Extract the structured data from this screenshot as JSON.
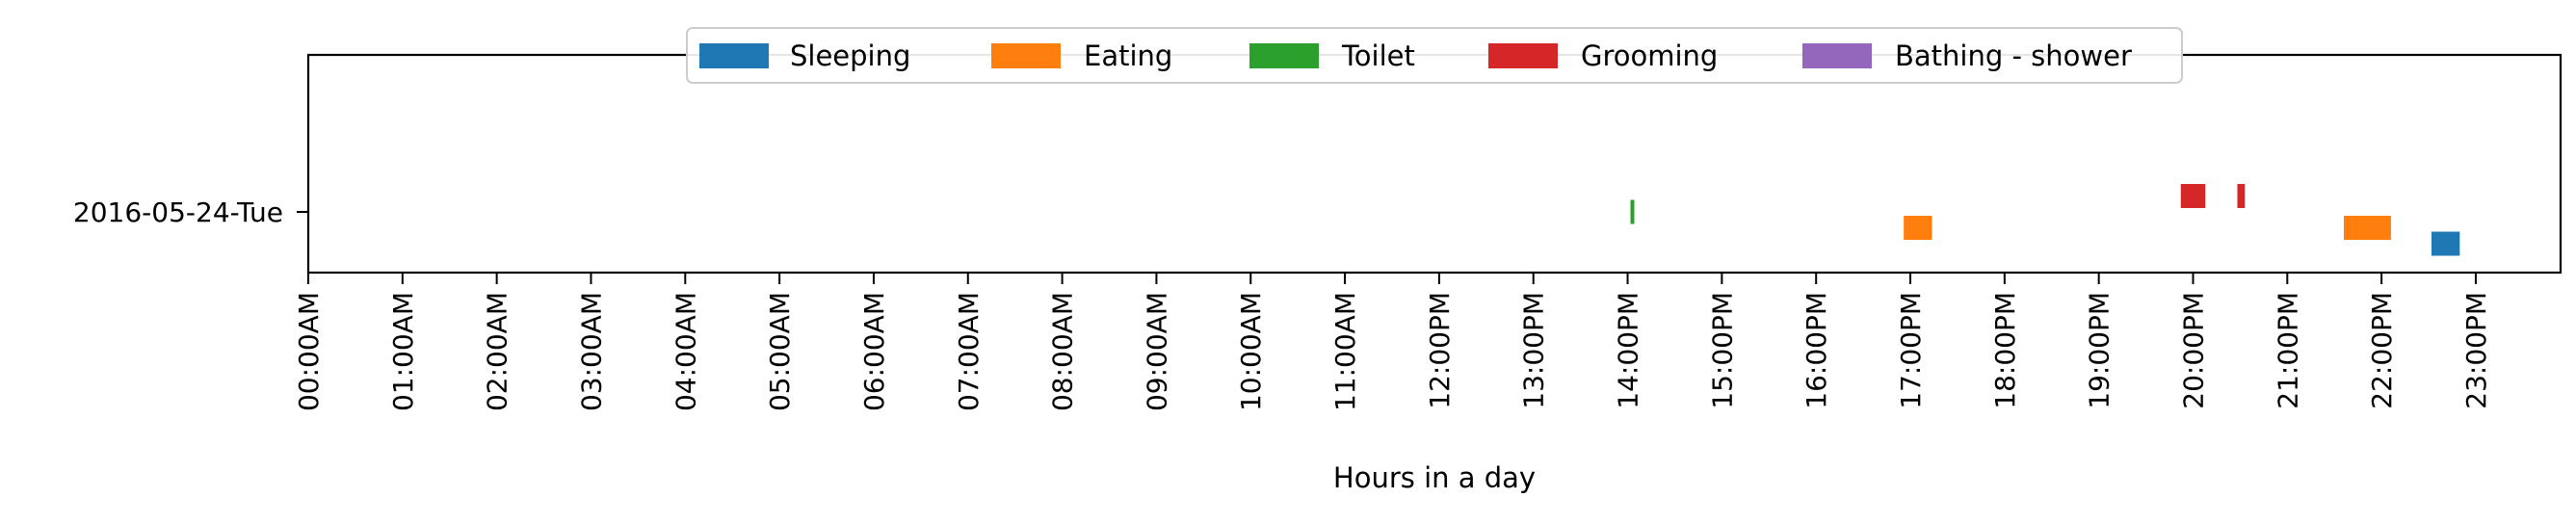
{
  "chart_data": {
    "type": "timeline",
    "xlabel": "Hours in a day",
    "ylabel": "",
    "title": "",
    "xlim": [
      0,
      23.9
    ],
    "row_label": "2016-05-24-Tue",
    "x_ticks": [
      "00:00AM",
      "01:00AM",
      "02:00AM",
      "03:00AM",
      "04:00AM",
      "05:00AM",
      "06:00AM",
      "07:00AM",
      "08:00AM",
      "09:00AM",
      "10:00AM",
      "11:00AM",
      "12:00PM",
      "13:00PM",
      "14:00PM",
      "15:00PM",
      "16:00PM",
      "17:00PM",
      "18:00PM",
      "19:00PM",
      "20:00PM",
      "21:00PM",
      "22:00PM",
      "23:00PM"
    ],
    "legend_position": "top-center",
    "series": [
      {
        "name": "Sleeping",
        "color": "#1f77b4",
        "lane": -0.2,
        "intervals": [
          [
            22.53,
            22.83
          ]
        ]
      },
      {
        "name": "Eating",
        "color": "#ff7f0e",
        "lane": -0.1,
        "intervals": [
          [
            16.93,
            17.23
          ],
          [
            21.6,
            22.1
          ]
        ]
      },
      {
        "name": "Toilet",
        "color": "#2ca02c",
        "lane": 0.0,
        "intervals": [
          [
            14.03,
            14.07
          ]
        ]
      },
      {
        "name": "Grooming",
        "color": "#d62728",
        "lane": 0.1,
        "intervals": [
          [
            19.87,
            20.13
          ],
          [
            20.47,
            20.55
          ]
        ]
      },
      {
        "name": "Bathing - shower",
        "color": "#9467bd",
        "lane": 0.2,
        "intervals": []
      }
    ]
  }
}
